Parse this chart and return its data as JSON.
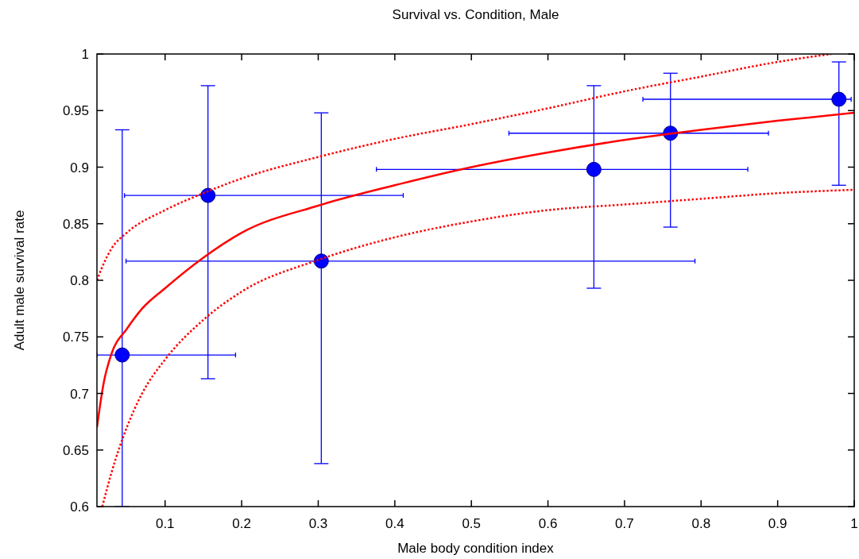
{
  "chart_data": {
    "type": "scatter",
    "title": "Survival vs. Condition, Male",
    "xlabel": "Male body condition index",
    "ylabel": "Adult male survival rate",
    "xlim": [
      0.011,
      1
    ],
    "ylim": [
      0.6,
      1
    ],
    "xticks": [
      0.1,
      0.2,
      0.3,
      0.4,
      0.5,
      0.6,
      0.7,
      0.8,
      0.9,
      1
    ],
    "yticks": [
      0.6,
      0.65,
      0.7,
      0.75,
      0.8,
      0.85,
      0.9,
      0.95,
      1
    ],
    "grid": false,
    "series": [
      {
        "color": "#0000ff",
        "marker": "circle",
        "x": [
          0.044,
          0.156,
          0.304,
          0.66,
          0.76,
          0.98
        ],
        "values": [
          0.734,
          0.875,
          0.817,
          0.898,
          0.93,
          0.96
        ],
        "errors": [
          [
            0.6,
            0.933
          ],
          [
            0.713,
            0.972
          ],
          [
            0.638,
            0.948
          ],
          [
            0.793,
            0.972
          ],
          [
            0.847,
            0.983
          ],
          [
            0.884,
            0.993
          ]
        ],
        "xerrors": [
          [
            0.011,
            0.192
          ],
          [
            0.047,
            0.411
          ],
          [
            0.049,
            0.792
          ],
          [
            0.376,
            0.861
          ],
          [
            0.549,
            0.888
          ],
          [
            0.724,
            0.996
          ]
        ]
      },
      {
        "type": "line",
        "color": "#ff0000",
        "line_style": "solid",
        "x": [
          0.011,
          0.02,
          0.03,
          0.05,
          0.07,
          0.1,
          0.15,
          0.2,
          0.3,
          0.4,
          0.5,
          0.6,
          0.7,
          0.8,
          0.9,
          1
        ],
        "values": [
          0.67,
          0.71,
          0.735,
          0.757,
          0.775,
          0.793,
          0.82,
          0.842,
          0.866,
          0.884,
          0.9,
          0.913,
          0.924,
          0.933,
          0.941,
          0.948
        ]
      },
      {
        "type": "line",
        "color": "#ff0000",
        "line_style": "dotted",
        "x": [
          0.011,
          0.02,
          0.03,
          0.05,
          0.1,
          0.15,
          0.2,
          0.3,
          0.4,
          0.5,
          0.6,
          0.7,
          0.8,
          0.9,
          0.97
        ],
        "values": [
          0.8,
          0.815,
          0.828,
          0.842,
          0.862,
          0.877,
          0.89,
          0.909,
          0.925,
          0.938,
          0.952,
          0.967,
          0.98,
          0.993,
          1
        ]
      },
      {
        "type": "line",
        "color": "#ff0000",
        "line_style": "dotted",
        "x": [
          0.018,
          0.03,
          0.05,
          0.07,
          0.1,
          0.15,
          0.2,
          0.3,
          0.4,
          0.5,
          0.6,
          0.7,
          0.8,
          0.9,
          1
        ],
        "values": [
          0.6,
          0.63,
          0.67,
          0.7,
          0.73,
          0.765,
          0.79,
          0.818,
          0.838,
          0.852,
          0.862,
          0.867,
          0.872,
          0.877,
          0.88
        ]
      }
    ]
  }
}
